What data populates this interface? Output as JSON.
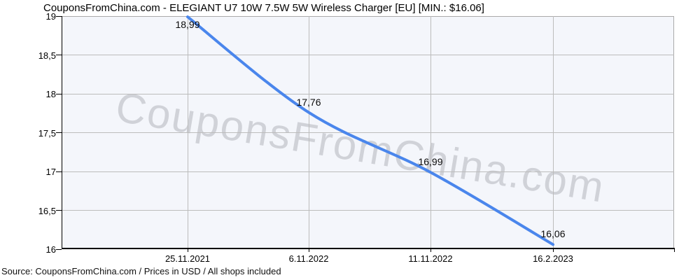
{
  "title": "CouponsFromChina.com - ELEGIANT U7 10W 7.5W 5W Wireless Charger [EU] [MIN.: $16.06]",
  "watermark": "CouponsFromChina.com",
  "footer": "Source: CouponsFromChina.com / Prices in USD / All shops included",
  "chart_data": {
    "type": "line",
    "title": "CouponsFromChina.com - ELEGIANT U7 10W 7.5W 5W Wireless Charger [EU] [MIN.: $16.06]",
    "x": [
      "25.11.2021",
      "6.11.2022",
      "11.11.2022",
      "16.2.2023"
    ],
    "values": [
      18.99,
      17.76,
      16.99,
      16.06
    ],
    "point_labels": [
      "18,99",
      "17,76",
      "16,99",
      "16,06"
    ],
    "y_tick_values": [
      19,
      18.5,
      18,
      17.5,
      17,
      16.5,
      16
    ],
    "y_tick_labels": [
      "19",
      "18,5",
      "18",
      "17,5",
      "17",
      "16,5",
      "16"
    ],
    "ylim": [
      16,
      19
    ],
    "xlabel": "",
    "ylabel": "",
    "grid": true,
    "legend": "none",
    "currency": "USD",
    "min_price_shown": "$16.06",
    "line_color": "#4a86ec",
    "plot_background": "#f4f6fb",
    "gridline_color": "#bcbcbc",
    "watermark_text": "CouponsFromChina.com"
  }
}
